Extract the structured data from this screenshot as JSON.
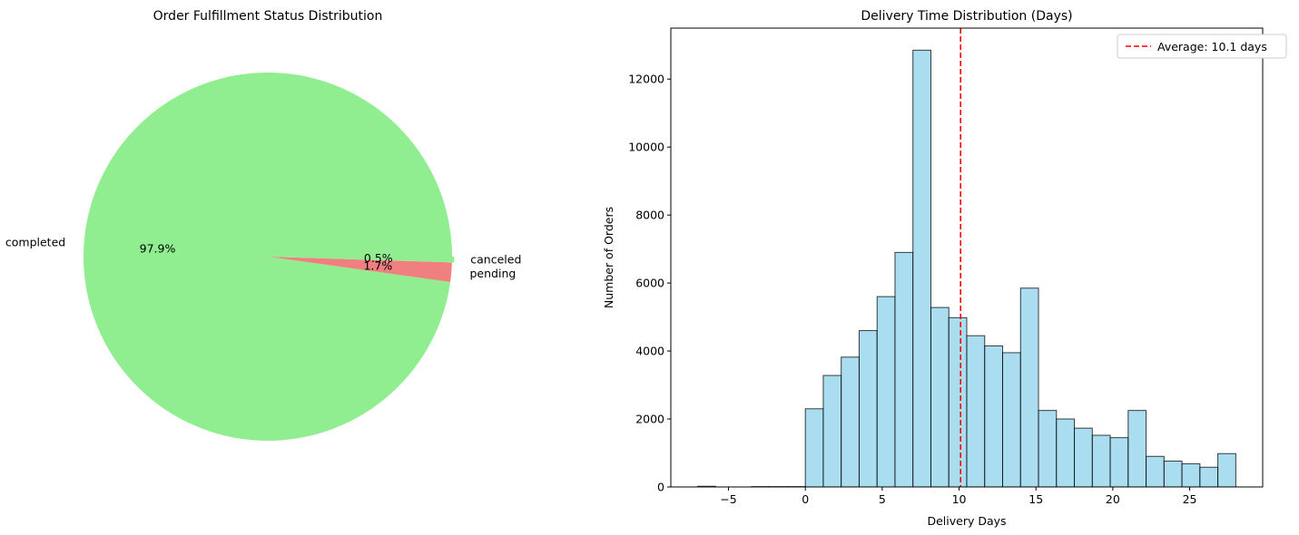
{
  "chart_data": [
    {
      "type": "pie",
      "title": "Order Fulfillment Status Distribution",
      "slices": [
        {
          "label": "completed",
          "pct_label": "97.9%",
          "value": 97.9,
          "color": "#90EE90"
        },
        {
          "label": "pending",
          "pct_label": "1.7%",
          "value": 1.7,
          "color": "#F08080"
        },
        {
          "label": "canceled",
          "pct_label": "0.5%",
          "value": 0.5,
          "color": "#90EE90"
        }
      ]
    },
    {
      "type": "bar",
      "title": "Delivery Time Distribution (Days)",
      "xlabel": "Delivery Days",
      "ylabel": "Number of Orders",
      "xlim": [
        -8.75,
        29.75
      ],
      "ylim": [
        0,
        13500
      ],
      "x_ticks": [
        "−5",
        "0",
        "5",
        "10",
        "15",
        "20",
        "25"
      ],
      "x_tick_values": [
        -5,
        0,
        5,
        10,
        15,
        20,
        25
      ],
      "y_ticks": [
        "0",
        "2000",
        "4000",
        "6000",
        "8000",
        "10000",
        "12000"
      ],
      "y_tick_values": [
        0,
        2000,
        4000,
        6000,
        8000,
        10000,
        12000
      ],
      "bar_color": "#87CEEB",
      "bin_width": 1.1667,
      "bins": [
        {
          "start": -7.0,
          "count": 20
        },
        {
          "start": -5.833,
          "count": 0
        },
        {
          "start": -4.667,
          "count": 0
        },
        {
          "start": -3.5,
          "count": 10
        },
        {
          "start": -2.333,
          "count": 10
        },
        {
          "start": -1.167,
          "count": 10
        },
        {
          "start": 0.0,
          "count": 2300
        },
        {
          "start": 1.167,
          "count": 3280
        },
        {
          "start": 2.333,
          "count": 3820
        },
        {
          "start": 3.5,
          "count": 4600
        },
        {
          "start": 4.667,
          "count": 5600
        },
        {
          "start": 5.833,
          "count": 6900
        },
        {
          "start": 7.0,
          "count": 12850
        },
        {
          "start": 8.167,
          "count": 5280
        },
        {
          "start": 9.333,
          "count": 4980
        },
        {
          "start": 10.5,
          "count": 4450
        },
        {
          "start": 11.667,
          "count": 4150
        },
        {
          "start": 12.833,
          "count": 3950
        },
        {
          "start": 14.0,
          "count": 5850
        },
        {
          "start": 15.167,
          "count": 2250
        },
        {
          "start": 16.333,
          "count": 2000
        },
        {
          "start": 17.5,
          "count": 1730
        },
        {
          "start": 18.667,
          "count": 1520
        },
        {
          "start": 19.833,
          "count": 1450
        },
        {
          "start": 21.0,
          "count": 2250
        },
        {
          "start": 22.167,
          "count": 900
        },
        {
          "start": 23.333,
          "count": 760
        },
        {
          "start": 24.5,
          "count": 680
        },
        {
          "start": 25.667,
          "count": 580
        },
        {
          "start": 26.833,
          "count": 980
        }
      ],
      "average": {
        "value": 10.1,
        "label": "Average: 10.1 days",
        "color": "#FF0000"
      },
      "legend_position": "top-right"
    }
  ]
}
